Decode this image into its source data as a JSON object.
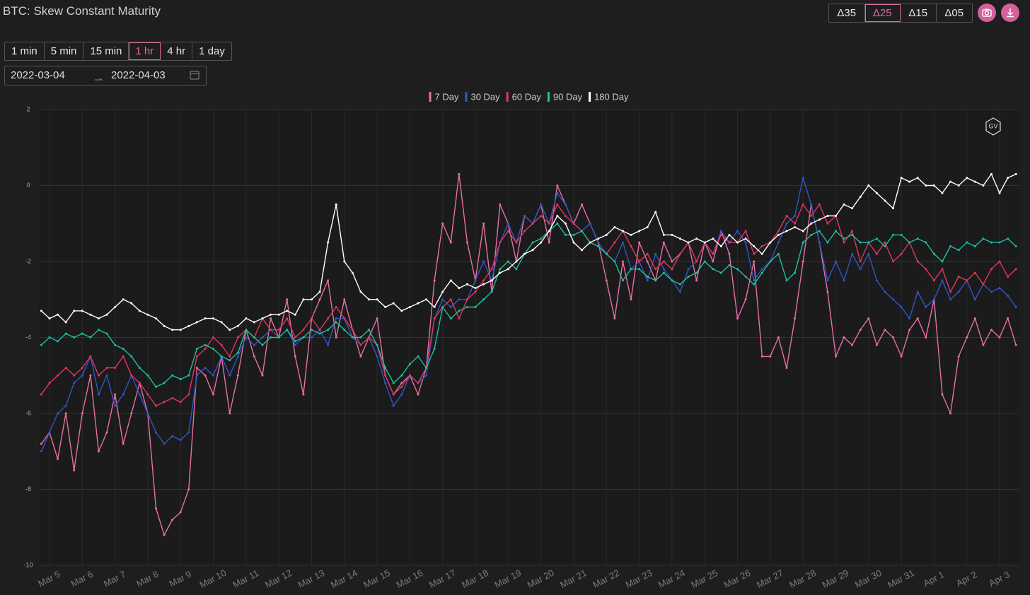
{
  "title": "BTC: Skew Constant Maturity",
  "delta_buttons": [
    "Δ35",
    "Δ25",
    "Δ15",
    "Δ05"
  ],
  "delta_selected": "Δ25",
  "interval_buttons": [
    "1 min",
    "5 min",
    "15 min",
    "1 hr",
    "4 hr",
    "1 day"
  ],
  "interval_selected": "1 hr",
  "date_range": [
    "2022-03-04",
    "2022-04-03"
  ],
  "watermark": "GV",
  "chart_data": {
    "type": "line",
    "ylim": [
      -10,
      2
    ],
    "yticks": [
      -10,
      -8,
      -6,
      -4,
      -2,
      0,
      2
    ],
    "grid": true,
    "legend": "top",
    "categories": [
      null,
      "Mar 5",
      null,
      null,
      null,
      "Mar 6",
      null,
      null,
      null,
      "Mar 7",
      null,
      null,
      null,
      "Mar 8",
      null,
      null,
      null,
      "Mar 9",
      null,
      null,
      null,
      "Mar 10",
      null,
      null,
      null,
      "Mar 11",
      null,
      null,
      null,
      "Mar 12",
      null,
      null,
      null,
      "Mar 13",
      null,
      null,
      null,
      "Mar 14",
      null,
      null,
      null,
      "Mar 15",
      null,
      null,
      null,
      "Mar 16",
      null,
      null,
      null,
      "Mar 17",
      null,
      null,
      null,
      "Mar 18",
      null,
      null,
      null,
      "Mar 19",
      null,
      null,
      null,
      "Mar 20",
      null,
      null,
      null,
      "Mar 21",
      null,
      null,
      null,
      "Mar 22",
      null,
      null,
      null,
      "Mar 23",
      null,
      null,
      null,
      "Mar 24",
      null,
      null,
      null,
      "Mar 25",
      null,
      null,
      null,
      "Mar 26",
      null,
      null,
      null,
      "Mar 27",
      null,
      null,
      null,
      "Mar 28",
      null,
      null,
      null,
      "Mar 29",
      null,
      null,
      null,
      "Mar 30",
      null,
      null,
      null,
      "Mar 31",
      null,
      null,
      null,
      "Apr 1",
      null,
      null,
      null,
      "Apr 2",
      null,
      null,
      null,
      "Apr 3",
      null,
      null
    ],
    "series": [
      {
        "name": "7 Day",
        "color": "#e870a8",
        "values": [
          -6.8,
          -6.5,
          -7.2,
          -6.0,
          -7.5,
          -6.0,
          -5.0,
          -7.0,
          -6.5,
          -5.5,
          -6.8,
          -6.0,
          -5.2,
          -6.0,
          -8.5,
          -9.2,
          -8.8,
          -8.6,
          -8.0,
          -4.8,
          -5.0,
          -5.5,
          -4.5,
          -6.0,
          -5.0,
          -3.8,
          -4.5,
          -5.0,
          -3.5,
          -4.0,
          -3.0,
          -4.5,
          -5.5,
          -3.5,
          -3.0,
          -2.5,
          -4.0,
          -3.0,
          -3.8,
          -4.5,
          -4.0,
          -3.5,
          -5.0,
          -5.5,
          -5.2,
          -5.0,
          -5.5,
          -4.8,
          -2.5,
          -1.0,
          -1.5,
          0.3,
          -1.5,
          -2.5,
          -1.0,
          -2.8,
          -0.5,
          -1.0,
          -2.0,
          -0.8,
          -1.0,
          -0.5,
          -1.5,
          0.0,
          -0.5,
          -1.0,
          -0.5,
          -1.0,
          -1.5,
          -2.5,
          -3.5,
          -2.0,
          -3.0,
          -1.5,
          -2.0,
          -2.5,
          -1.5,
          -2.0,
          -1.8,
          -1.5,
          -2.5,
          -1.5,
          -2.0,
          -1.2,
          -1.8,
          -3.5,
          -3.0,
          -2.0,
          -4.5,
          -4.5,
          -4.0,
          -4.8,
          -3.5,
          -2.0,
          -0.5,
          -1.5,
          -2.8,
          -4.5,
          -4.0,
          -4.2,
          -3.8,
          -3.5,
          -4.2,
          -3.8,
          -4.0,
          -4.5,
          -3.8,
          -3.5,
          -4.0,
          -3.0,
          -5.5,
          -6.0,
          -4.5,
          -4.0,
          -3.5,
          -4.2,
          -3.8,
          -4.0,
          -3.5,
          -4.2
        ]
      },
      {
        "name": "30 Day",
        "color": "#3256c4",
        "values": [
          -7.0,
          -6.5,
          -6.0,
          -5.8,
          -5.2,
          -5.0,
          -4.5,
          -5.5,
          -5.0,
          -5.8,
          -5.5,
          -5.0,
          -5.5,
          -6.0,
          -6.5,
          -6.8,
          -6.6,
          -6.7,
          -6.5,
          -5.0,
          -4.8,
          -5.0,
          -4.5,
          -5.0,
          -4.5,
          -4.0,
          -4.2,
          -4.0,
          -3.8,
          -4.0,
          -3.8,
          -4.2,
          -4.0,
          -4.0,
          -3.8,
          -4.2,
          -3.5,
          -3.5,
          -4.0,
          -4.2,
          -4.0,
          -4.5,
          -5.2,
          -5.8,
          -5.5,
          -5.0,
          -5.2,
          -5.0,
          -3.5,
          -3.0,
          -3.2,
          -3.0,
          -3.0,
          -2.5,
          -2.0,
          -2.5,
          -1.5,
          -1.0,
          -1.5,
          -0.8,
          -1.0,
          -0.5,
          -1.0,
          -0.2,
          -0.5,
          -1.0,
          -1.2,
          -1.0,
          -1.5,
          -1.8,
          -2.0,
          -1.5,
          -2.2,
          -2.0,
          -2.5,
          -1.8,
          -2.2,
          -2.5,
          -2.8,
          -2.2,
          -2.0,
          -1.5,
          -1.8,
          -1.2,
          -1.5,
          -1.2,
          -1.5,
          -2.5,
          -2.2,
          -2.0,
          -1.5,
          -1.0,
          -0.8,
          0.2,
          -0.5,
          -1.5,
          -2.5,
          -2.0,
          -2.5,
          -1.8,
          -2.2,
          -1.8,
          -2.5,
          -2.8,
          -3.0,
          -3.2,
          -3.5,
          -2.8,
          -3.2,
          -3.0,
          -2.5,
          -3.0,
          -2.8,
          -2.5,
          -3.0,
          -2.6,
          -2.8,
          -2.7,
          -2.9,
          -3.2
        ]
      },
      {
        "name": "60 Day",
        "color": "#e0375f",
        "values": [
          -5.5,
          -5.2,
          -5.0,
          -4.8,
          -5.0,
          -4.8,
          -4.5,
          -5.0,
          -4.8,
          -4.8,
          -4.5,
          -5.0,
          -5.2,
          -5.5,
          -5.8,
          -5.7,
          -5.6,
          -5.7,
          -5.5,
          -4.5,
          -4.3,
          -4.0,
          -4.2,
          -4.5,
          -4.0,
          -3.8,
          -4.0,
          -3.5,
          -3.8,
          -3.8,
          -3.5,
          -4.0,
          -3.8,
          -3.5,
          -3.8,
          -3.5,
          -3.2,
          -3.5,
          -3.8,
          -4.2,
          -4.0,
          -4.2,
          -5.0,
          -5.5,
          -5.3,
          -5.0,
          -5.2,
          -4.8,
          -3.5,
          -3.2,
          -3.0,
          -3.5,
          -3.0,
          -2.8,
          -2.5,
          -2.2,
          -1.5,
          -1.2,
          -1.5,
          -1.2,
          -1.0,
          -0.8,
          -1.0,
          -0.5,
          -0.8,
          -1.0,
          -1.2,
          -1.5,
          -1.6,
          -1.8,
          -1.5,
          -1.2,
          -1.6,
          -2.0,
          -1.8,
          -2.2,
          -2.0,
          -2.2,
          -1.8,
          -1.5,
          -2.0,
          -1.5,
          -1.8,
          -1.3,
          -1.5,
          -1.5,
          -1.2,
          -1.8,
          -1.6,
          -1.5,
          -1.2,
          -0.8,
          -1.0,
          -0.5,
          -0.8,
          -0.5,
          -1.0,
          -0.8,
          -1.5,
          -1.2,
          -2.0,
          -1.5,
          -1.8,
          -1.5,
          -2.0,
          -1.8,
          -1.5,
          -2.0,
          -2.2,
          -2.5,
          -2.2,
          -2.8,
          -2.4,
          -2.5,
          -2.3,
          -2.6,
          -2.2,
          -2.0,
          -2.4,
          -2.2
        ]
      },
      {
        "name": "90 Day",
        "color": "#1fbfa5",
        "values": [
          -4.2,
          -4.0,
          -4.1,
          -3.9,
          -4.0,
          -3.9,
          -4.0,
          -3.8,
          -3.9,
          -4.2,
          -4.3,
          -4.5,
          -4.8,
          -5.0,
          -5.3,
          -5.2,
          -5.0,
          -5.1,
          -5.0,
          -4.3,
          -4.2,
          -4.3,
          -4.5,
          -4.6,
          -4.4,
          -3.8,
          -4.0,
          -4.2,
          -4.0,
          -4.0,
          -3.8,
          -4.1,
          -4.0,
          -3.8,
          -3.9,
          -3.8,
          -3.6,
          -3.8,
          -4.0,
          -4.0,
          -3.8,
          -4.2,
          -4.8,
          -5.2,
          -5.0,
          -4.7,
          -4.5,
          -4.8,
          -4.3,
          -3.2,
          -3.5,
          -3.3,
          -3.2,
          -3.2,
          -3.0,
          -2.8,
          -2.2,
          -2.0,
          -2.2,
          -1.8,
          -1.5,
          -1.4,
          -1.2,
          -1.0,
          -1.3,
          -1.3,
          -1.2,
          -1.5,
          -1.6,
          -1.8,
          -2.0,
          -2.5,
          -2.2,
          -2.2,
          -2.4,
          -2.5,
          -2.3,
          -2.5,
          -2.6,
          -2.4,
          -2.3,
          -2.0,
          -2.2,
          -2.3,
          -2.1,
          -2.2,
          -2.4,
          -2.6,
          -2.3,
          -2.0,
          -1.8,
          -2.5,
          -2.3,
          -1.5,
          -1.3,
          -1.2,
          -1.5,
          -1.2,
          -1.4,
          -1.3,
          -1.5,
          -1.5,
          -1.4,
          -1.6,
          -1.3,
          -1.3,
          -1.5,
          -1.4,
          -1.5,
          -1.8,
          -2.0,
          -1.6,
          -1.7,
          -1.5,
          -1.6,
          -1.4,
          -1.5,
          -1.5,
          -1.4,
          -1.6
        ]
      },
      {
        "name": "180 Day",
        "color": "#ffffff",
        "values": [
          -3.3,
          -3.5,
          -3.4,
          -3.6,
          -3.3,
          -3.3,
          -3.4,
          -3.5,
          -3.4,
          -3.2,
          -3.0,
          -3.1,
          -3.3,
          -3.4,
          -3.5,
          -3.7,
          -3.8,
          -3.8,
          -3.7,
          -3.6,
          -3.5,
          -3.5,
          -3.6,
          -3.8,
          -3.7,
          -3.5,
          -3.6,
          -3.5,
          -3.4,
          -3.4,
          -3.3,
          -3.4,
          -3.0,
          -3.0,
          -2.8,
          -1.5,
          -0.5,
          -2.0,
          -2.3,
          -2.8,
          -3.0,
          -3.0,
          -3.2,
          -3.1,
          -3.3,
          -3.2,
          -3.1,
          -3.0,
          -3.2,
          -2.8,
          -2.5,
          -2.7,
          -2.6,
          -2.7,
          -2.6,
          -2.5,
          -2.3,
          -2.2,
          -2.0,
          -1.8,
          -1.7,
          -1.5,
          -1.2,
          -0.8,
          -1.0,
          -1.5,
          -1.7,
          -1.5,
          -1.4,
          -1.3,
          -1.1,
          -1.2,
          -1.3,
          -1.2,
          -1.1,
          -0.7,
          -1.3,
          -1.3,
          -1.4,
          -1.5,
          -1.4,
          -1.5,
          -1.4,
          -1.6,
          -1.3,
          -1.5,
          -1.4,
          -1.6,
          -1.8,
          -1.5,
          -1.3,
          -1.2,
          -1.1,
          -1.2,
          -1.0,
          -0.9,
          -0.8,
          -0.8,
          -0.5,
          -0.6,
          -0.3,
          0.0,
          -0.2,
          -0.4,
          -0.6,
          0.2,
          0.1,
          0.2,
          0.0,
          0.0,
          -0.2,
          0.1,
          0.0,
          0.2,
          0.1,
          0.0,
          0.3,
          -0.2,
          0.2,
          0.3
        ]
      }
    ]
  }
}
